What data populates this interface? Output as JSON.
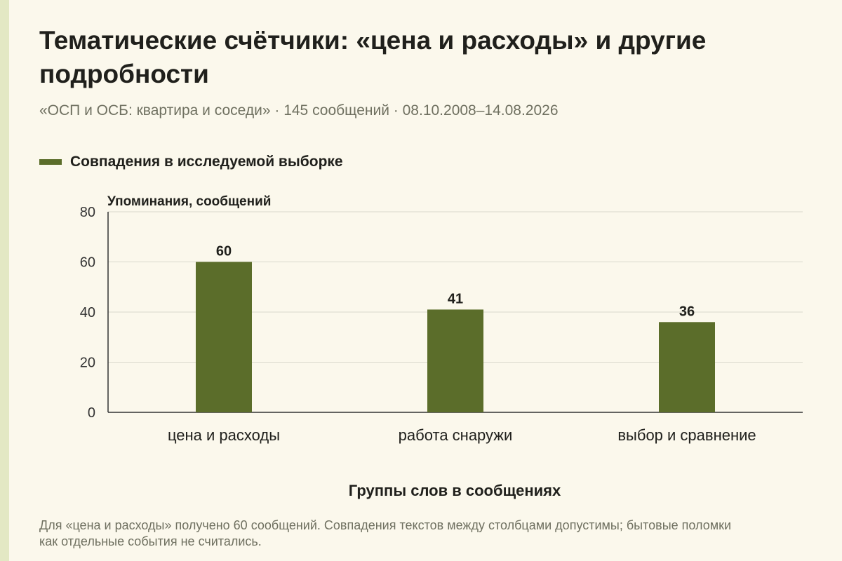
{
  "header": {
    "title": "Тематические счётчики: «цена и расходы» и другие подробности",
    "subtitle": "«ОСП и ОСБ: квартира и соседи» · 145 сообщений · 08.10.2008–14.08.2026"
  },
  "footnote": "Для «цена и расходы» получено 60 сообщений. Совпадения текстов между столбцами допустимы; бытовые поломки как отдельные события не считались.",
  "colors": {
    "bar": "#5b6d2a",
    "grid": "#d9d9cc",
    "axis": "#333333",
    "background": "#fbf8ec"
  },
  "chart_data": {
    "type": "bar",
    "categories": [
      "цена и расходы",
      "работа снаружи",
      "выбор и сравнение"
    ],
    "series": [
      {
        "name": "Совпадения в исследуемой выборке",
        "values": [
          60,
          41,
          36
        ]
      }
    ],
    "data_labels": [
      "60",
      "41",
      "36"
    ],
    "xlabel": "Группы слов в сообщениях",
    "ylabel": "Упоминания, сообщений",
    "ylim": [
      0,
      80
    ],
    "yticks": [
      0,
      20,
      40,
      60,
      80
    ],
    "grid": true,
    "legend_position": "top-left"
  }
}
